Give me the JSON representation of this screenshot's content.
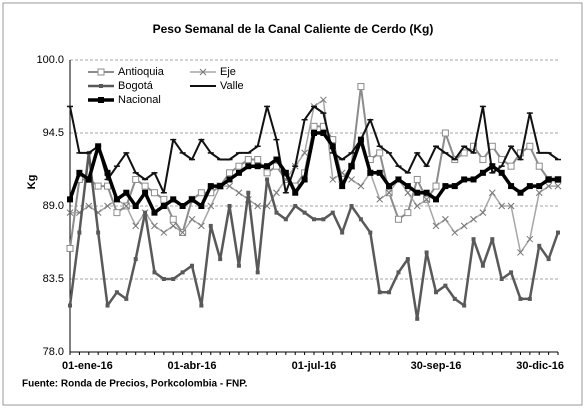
{
  "chart_data": {
    "type": "line",
    "title": "Peso Semanal de la Canal Caliente de Cerdo (Kg)",
    "ylabel": "Kg",
    "source": "Fuente: Ronda de Precios, Porkcolombia - FNP.",
    "categories": [
      "01-ene-16",
      null,
      null,
      null,
      null,
      null,
      null,
      null,
      null,
      null,
      null,
      null,
      null,
      "01-abr-16",
      null,
      null,
      null,
      null,
      null,
      null,
      null,
      null,
      null,
      null,
      null,
      null,
      "01-jul-16",
      null,
      null,
      null,
      null,
      null,
      null,
      null,
      null,
      null,
      null,
      null,
      null,
      "30-sep-16",
      null,
      null,
      null,
      null,
      null,
      null,
      null,
      null,
      null,
      null,
      null,
      null,
      "30-dic-16"
    ],
    "ylim": [
      78,
      100
    ],
    "yticks": [
      {
        "value": 78,
        "label": "78.0"
      },
      {
        "value": 83.5,
        "label": "83.5"
      },
      {
        "value": 89,
        "label": "89.0"
      },
      {
        "value": 94.5,
        "label": "94.5"
      },
      {
        "value": 100,
        "label": "100.0"
      }
    ],
    "grid": true,
    "series": [
      {
        "name": "Antioquia",
        "color": "#8c8c8c",
        "width": 2,
        "marker": "square-open",
        "values": [
          85.8,
          91,
          91,
          90.5,
          90.5,
          88.5,
          89,
          91,
          90.5,
          90,
          89.5,
          88,
          87,
          89.5,
          90,
          90,
          90.5,
          91.5,
          92,
          92.5,
          92.5,
          91.5,
          92,
          91,
          90.5,
          91.5,
          95,
          95,
          94,
          91,
          92,
          98,
          92.5,
          93,
          90,
          88,
          88.5,
          91,
          89.5,
          90.5,
          94.5,
          92.5,
          93,
          93.5,
          92.5,
          93.5,
          92.5,
          92,
          93,
          93.5,
          92,
          91,
          91
        ]
      },
      {
        "name": "Eje",
        "color": "#a6a6a6",
        "width": 1.5,
        "marker": "x",
        "values": [
          88.5,
          88.5,
          89,
          88.5,
          89,
          89.5,
          89,
          87.5,
          88.5,
          87.5,
          87,
          87.5,
          87,
          88,
          87.5,
          89,
          90.5,
          90.5,
          90,
          89.5,
          89,
          89,
          90,
          91,
          92,
          93,
          96.5,
          97,
          91,
          91.5,
          91,
          90.5,
          91.5,
          89.5,
          90,
          91,
          90,
          89,
          89.5,
          87.5,
          88,
          87,
          87.5,
          88,
          88.5,
          90,
          89,
          89,
          85.5,
          86.5,
          90,
          90.5,
          90.5
        ]
      },
      {
        "name": "Bogotá",
        "color": "#595959",
        "width": 2.5,
        "marker": "square-small",
        "values": [
          81.5,
          87,
          93,
          87,
          81.5,
          82.5,
          82,
          85,
          88.5,
          84,
          83.5,
          83.5,
          84,
          84.5,
          81.5,
          87.5,
          85,
          89,
          84.5,
          90,
          84,
          91,
          88.5,
          88,
          89,
          88.5,
          88,
          88,
          88.5,
          87,
          89,
          88,
          87,
          82.5,
          82.5,
          84,
          85,
          80.5,
          85.5,
          82.5,
          83,
          82,
          81.5,
          86.5,
          84.5,
          86.5,
          83.5,
          84,
          82,
          82,
          86,
          85,
          87
        ]
      },
      {
        "name": "Valle",
        "color": "#111111",
        "width": 2,
        "marker": "dash",
        "values": [
          96.5,
          93,
          93,
          93.5,
          91,
          92,
          93,
          91.5,
          91,
          91.5,
          90,
          94,
          93,
          92.5,
          94,
          93,
          92.5,
          92.5,
          93,
          93,
          93.5,
          96.5,
          94,
          90,
          92,
          95.5,
          96.5,
          96,
          93,
          92.5,
          93,
          94,
          95.5,
          93.5,
          93,
          92,
          91.5,
          93,
          92,
          93.5,
          93,
          92.5,
          93.5,
          93,
          96.5,
          91.5,
          92,
          93.5,
          92.5,
          96,
          93,
          93,
          92.5
        ]
      },
      {
        "name": "Nacional",
        "color": "#000000",
        "width": 3.5,
        "marker": "square-filled",
        "values": [
          89.5,
          91.5,
          91,
          93.5,
          91.5,
          89.5,
          90,
          89,
          90,
          88.5,
          89,
          89.5,
          89,
          89.5,
          89,
          90.5,
          90.5,
          91,
          91.5,
          92,
          92,
          92,
          92.5,
          91.5,
          90,
          91,
          94.5,
          94.5,
          93.5,
          90.5,
          92,
          94,
          91.5,
          91.5,
          90.5,
          91,
          90.5,
          90,
          90,
          89.5,
          90.5,
          90.5,
          91,
          91,
          91.5,
          92,
          91.5,
          90.5,
          90,
          90.5,
          90.5,
          91,
          91
        ]
      }
    ]
  }
}
